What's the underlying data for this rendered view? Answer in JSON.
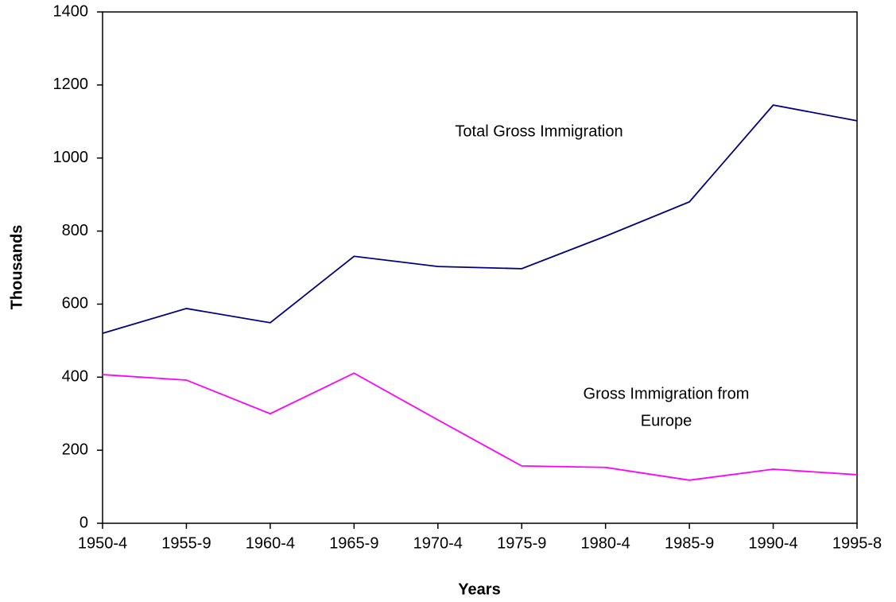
{
  "chart_data": {
    "type": "line",
    "x_label": "Years",
    "y_label": "Thousands",
    "categories": [
      "1950-4",
      "1955-9",
      "1960-4",
      "1965-9",
      "1970-4",
      "1975-9",
      "1980-4",
      "1985-9",
      "1990-4",
      "1995-8"
    ],
    "series": [
      {
        "color": "#000080",
        "values": [
          520,
          588,
          549,
          731,
          703,
          697,
          786,
          880,
          1145,
          1102
        ]
      },
      {
        "color": "#ff00ff",
        "values": [
          407,
          392,
          300,
          411,
          283,
          157,
          153,
          118,
          148,
          133
        ]
      }
    ],
    "annotations": [
      {
        "lines": [
          "Total Gross Immigration"
        ]
      },
      {
        "lines": [
          "Gross Immigration from",
          "Europe"
        ]
      }
    ],
    "ylim": [
      0,
      1400
    ],
    "yticks": [
      0,
      200,
      400,
      600,
      800,
      1000,
      1200,
      1400
    ],
    "grid": false
  }
}
